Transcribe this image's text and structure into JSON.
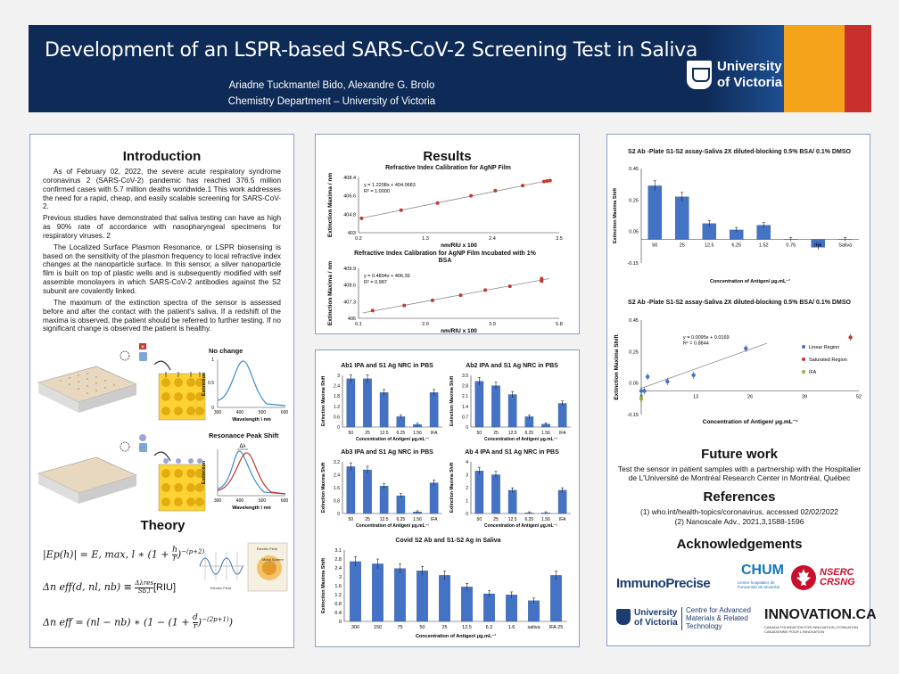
{
  "banner": {
    "title": "Development of an LSPR-based SARS-CoV-2 Screening Test in Saliva",
    "authors": "Ariadne Tuckmantel Bido, Alexandre G. Brolo",
    "department": "Chemistry Department – University of Victoria",
    "logo_line1": "University",
    "logo_line2": "of Victoria",
    "colors": {
      "navy": "#0e2a57",
      "gold": "#f5a31a",
      "red": "#c8302d"
    }
  },
  "introduction": {
    "heading": "Introduction",
    "paragraphs": [
      "As of February 02, 2022, the severe acute respiratory syndrome coronavirus 2 (SARS-CoV-2) pandemic has reached 376.5 million confirmed cases with 5.7 million deaths worldwide.1 This work addresses the need for a rapid, cheap, and easily scalable screening for SARS-CoV-2.",
      "Previous studies have demonstrated that saliva testing can have as high as 90% rate of accordance with nasopharyngeal specimens for respiratory viruses. 2",
      "The Localized Surface Plasmon Resonance, or LSPR biosensing is based on the sensitivity of the plasmon frequency to local refractive index changes at the nanoparticle surface. In this sensor, a silver nanoparticle film is built on top of plastic wells and is subsequently modified with self assemble monolayers in which SARS-CoV-2 antibodies against the S2 subunit are covalently linked.",
      "The maximum of the extinction spectra of the sensor is assessed before and after the contact with the patient's saliva. If a redshift of the maxima is observed, the patient should be referred to further testing. If no significant change is observed the patient is healthy."
    ],
    "no_change_label": "No change",
    "shift_label": "Resonance Peak Shift",
    "delta_label": "Δλ",
    "spectrum_ylabel": "Extinction",
    "spectrum_xlabel": "Wavelength \\ nm",
    "spectrum_xticks": [
      "300",
      "400",
      "500",
      "600"
    ],
    "spectrum_yticks": [
      "0",
      "0.5",
      "1"
    ]
  },
  "theory": {
    "heading": "Theory",
    "eq1_left": "|Ep(h)| = E, max, l ∗ (1 + ",
    "eq1_frac_num": "h",
    "eq1_frac_den": "r",
    "eq1_exp": "−(p+2)",
    "eq2_left": "Δn eff(d, nl, nb) ≡ ",
    "eq2_num": "Δλres",
    "eq2_den": "Sb,l",
    "eq2_unit": "[RIU]",
    "eq3_left": "Δn eff = (nl − nb) ∗ (1 − (1 + ",
    "eq3_num": "d",
    "eq3_den": "r",
    "eq3_exp": "−(2p+1)",
    "diagram_label1": "Electric Field",
    "diagram_label2": "Electric Field",
    "diagram_label3": "Metal Sphere"
  },
  "results": {
    "heading": "Results",
    "calib_ylabel": "Extinction Maxima / nm",
    "calib_xlabel": "nm/RIU x 100"
  },
  "future_work": {
    "heading": "Future work",
    "text": "Test the sensor in patient samples with a partnership with the Hospitalier de L'Université de Montréal Research Center in Montréal, Québec"
  },
  "references": {
    "heading": "References",
    "items": [
      "(1) who.int/health-topics/coronavirus, accessed 02/02/2022",
      "(2) Nanoscale Adv., 2021,3,1588-1596"
    ]
  },
  "acknowledgements": {
    "heading": "Acknowledgements",
    "immuno": "ImmunoPrecise",
    "chum": "CHUM",
    "chum_sub": "Centre hospitalier de l'Université de Montréal",
    "nserc1": "NSERC",
    "nserc2": "CRSNG",
    "uvic1": "University",
    "uvic2": "of Victoria",
    "cam": "Centre for Advanced Materials & Related Technology",
    "innov": "INNOVATION.CA",
    "innov_sub": "CANADA FOUNDATION FOR INNOVATION | FONDATION CANADIENNE POUR L'INNOVATION"
  },
  "chart_data": [
    {
      "type": "scatter",
      "title": "Refractive Index Calibration for AgNP Film",
      "xlabel": "nm/RIU x 100",
      "ylabel": "Extinction Maxima / nm",
      "xlim": [
        0.2,
        3.5
      ],
      "ylim": [
        403,
        408.4
      ],
      "xticks": [
        "0.2",
        "1.3",
        "2.4",
        "3.5"
      ],
      "yticks": [
        "403",
        "404.8",
        "406.6",
        "408.4"
      ],
      "x": [
        0.25,
        0.9,
        1.5,
        2.05,
        2.45,
        2.9,
        3.25,
        3.3,
        3.35
      ],
      "y": [
        404.4,
        405.2,
        405.9,
        406.6,
        407.1,
        407.6,
        408.0,
        408.05,
        408.1
      ],
      "fit_equation": "y = 1.2208x + 404.0683",
      "r2": "R² = 1.0000"
    },
    {
      "type": "scatter",
      "title": "Refractive Index Calibration for AgNP Film Incubated with 1% BSA",
      "xlabel": "nm/RIU x 100",
      "ylabel": "Extinction Maxima / nm",
      "xlim": [
        0.1,
        5.8
      ],
      "ylim": [
        406,
        409.9
      ],
      "xticks": [
        "0.1",
        "2.0",
        "3.9",
        "5.8"
      ],
      "yticks": [
        "406",
        "407.3",
        "408.6",
        "409.9"
      ],
      "x": [
        0.5,
        1.4,
        2.2,
        3.0,
        3.7,
        4.4,
        5.3,
        5.3,
        5.3
      ],
      "y": [
        406.6,
        407.0,
        407.4,
        407.8,
        408.2,
        408.5,
        408.9,
        409.0,
        409.1
      ],
      "fit_equation": "y = 0.4894x + 406.39",
      "r2": "R² = 0.987"
    },
    {
      "type": "bar",
      "title": "Ab1 IPA and S1 Ag NRC in PBS",
      "ylabel": "Extinction Maxima Shift",
      "xlabel": "Concentration of Antigen/ μg.mL⁻¹",
      "categories": [
        "50",
        "25",
        "12.5",
        "6.25",
        "1.56",
        "IFA"
      ],
      "values": [
        2.8,
        2.8,
        2.0,
        0.6,
        0.15,
        2.0
      ],
      "ylim": [
        0,
        3
      ],
      "yticks": [
        "0",
        "0.6",
        "1.2",
        "1.8",
        "2.4",
        "3"
      ]
    },
    {
      "type": "bar",
      "title": "Ab2 IPA and S1 Ag NRC in PBS",
      "ylabel": "Extinction Maxima Shift",
      "xlabel": "Concentration of Antigen/ μg.mL⁻¹",
      "categories": [
        "50",
        "25",
        "12.5",
        "6.25",
        "1.56",
        "IFA"
      ],
      "values": [
        3.1,
        2.8,
        2.2,
        0.7,
        0.2,
        1.6
      ],
      "ylim": [
        0,
        3.5
      ],
      "yticks": [
        "0",
        "0.7",
        "1.4",
        "2.1",
        "2.8",
        "3.5"
      ]
    },
    {
      "type": "bar",
      "title": "Ab3 IPA and S1 Ag NRC in PBS",
      "ylabel": "Extinction Maxima Shift",
      "xlabel": "Concentration of Antigen/ μg.mL⁻¹",
      "categories": [
        "50",
        "25",
        "12.5",
        "6.25",
        "1.56",
        "IFA"
      ],
      "values": [
        2.9,
        2.7,
        1.7,
        1.1,
        0.1,
        1.9
      ],
      "ylim": [
        0,
        3.2
      ],
      "yticks": [
        "0",
        "0.8",
        "1.6",
        "2.4",
        "3.2"
      ]
    },
    {
      "type": "bar",
      "title": "Ab 4 IPA and S1 Ag NRC in PBS",
      "ylabel": "Extinction Maxima Shift",
      "xlabel": "Concentration of Antigen/ μg.mL⁻¹",
      "categories": [
        "50",
        "25",
        "12.5",
        "6.25",
        "1.56",
        "IFA"
      ],
      "values": [
        3.3,
        3.0,
        1.8,
        0.05,
        0.05,
        1.8
      ],
      "ylim": [
        0,
        4
      ],
      "yticks": [
        "0",
        "1",
        "2",
        "3",
        "4"
      ]
    },
    {
      "type": "bar",
      "title": "Covid S2 Ab and S1-S2 Ag in Saliva",
      "ylabel": "Extinction Maxima Shift",
      "xlabel": "Concentration of Antigen/ μg.mL⁻¹",
      "categories": [
        "300",
        "150",
        "75",
        "50",
        "25",
        "12.5",
        "6.2",
        "1.6",
        "saliva",
        "IFA 25"
      ],
      "values": [
        2.6,
        2.5,
        2.3,
        2.2,
        2.0,
        1.5,
        1.2,
        1.15,
        0.9,
        2.0
      ],
      "ylim": [
        0,
        3.1
      ],
      "yticks": [
        "0",
        "0.4",
        "0.8",
        "1.2",
        "1.6",
        "2",
        "2.4",
        "2.8",
        "3.1"
      ]
    },
    {
      "type": "bar",
      "title": "S2 Ab -Plate S1-S2 assay-Saliva 2X diluted-blocking 0.5% BSA/ 0.1% DMSO",
      "ylabel": "Extinction Maxima Shift",
      "xlabel": "Concentration of Antigen/ μg.mL⁻¹",
      "categories": [
        "50",
        "25",
        "12.5",
        "6.25",
        "1.52",
        "0.76",
        "IFA",
        "Saliva"
      ],
      "values": [
        0.34,
        0.27,
        0.1,
        0.06,
        0.09,
        0.0,
        -0.05,
        0.0
      ],
      "ylim": [
        -0.15,
        0.45
      ],
      "yticks": [
        "-0.15",
        "0.05",
        "0.25",
        "0.45"
      ]
    },
    {
      "type": "scatter",
      "title": "S2 Ab -Plate S1-S2 assay-Saliva 2X diluted-blocking 0.5% BSA/ 0.1% DMSO",
      "ylabel": "Extinction Maxima Shift",
      "xlabel": "Concentration of Antigen/ μg.mL⁻¹",
      "xlim": [
        0,
        52
      ],
      "ylim": [
        -0.15,
        0.45
      ],
      "xticks": [
        "0",
        "13",
        "26",
        "39",
        "52"
      ],
      "yticks": [
        "-0.15",
        "0.05",
        "0.25",
        "0.45"
      ],
      "series": [
        {
          "name": "Linear Region",
          "x": [
            0.0,
            0.76,
            1.52,
            6.25,
            12.5,
            25
          ],
          "y": [
            0.0,
            0.0,
            0.09,
            0.06,
            0.1,
            0.27
          ]
        },
        {
          "name": "Saturated Region",
          "x": [
            50
          ],
          "y": [
            0.34
          ]
        },
        {
          "name": "IFA",
          "x": [
            0
          ],
          "y": [
            -0.05
          ]
        }
      ],
      "fit_equation": "y = 0.0095x + 0.0169",
      "r2": "R² = 0.8844"
    }
  ]
}
